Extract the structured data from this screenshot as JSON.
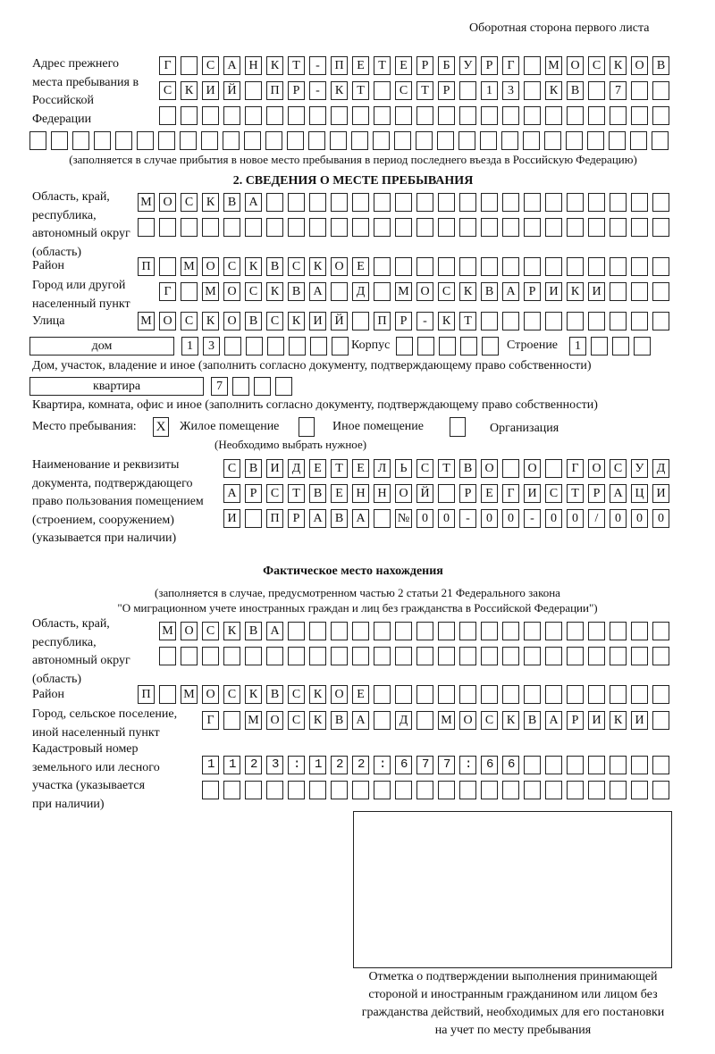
{
  "header": "Оборотная сторона первого листа",
  "prev_address": {
    "label": "Адрес прежнего места пребывания в Российской Федерации",
    "rows": [
      "Г САНКТ-ПЕТЕРБУРГ МОСКОВ",
      "СКИЙ ПР-КТ СТР 13 КВ 7",
      "",
      ""
    ],
    "note": "(заполняется в случае прибытия в новое место пребывания в период последнего въезда в Российскую Федерацию)"
  },
  "section2": {
    "title": "2. СВЕДЕНИЯ О МЕСТЕ ПРЕБЫВАНИЯ",
    "region_label": "Область, край, республика, автономный округ (область)",
    "region_rows": [
      "МОСКВА",
      ""
    ],
    "district_label": "Район",
    "district": "П МОСКВСКОЕ",
    "city_label": "Город или другой населенный пункт",
    "city": "Г МОСКВА Д МОСКВАРИКИ",
    "street_label": "Улица",
    "street": "МОСКОВСКИЙ ПР-КТ",
    "house_type": "дом",
    "house": "13",
    "korpus_label": "Корпус",
    "korpus": "",
    "building_label": "Строение",
    "building": "1",
    "house_caption": "Дом, участок, владение и иное (заполнить согласно документу, подтверждающему право собственности)",
    "flat_type": "квартира",
    "flat": "7",
    "flat_caption": "Квартира, комната, офис и иное (заполнить согласно документу, подтверждающему право собственности)",
    "stay_label": "Место пребывания:",
    "options": [
      {
        "label": "Жилое помещение",
        "mark": "X"
      },
      {
        "label": "Иное помещение",
        "mark": ""
      },
      {
        "label": "Организация",
        "mark": ""
      }
    ],
    "choose_note": "(Необходимо выбрать нужное)",
    "doc_label": "Наименование и реквизиты документа, подтверждающего право пользования помещением (строением, сооружением) (указывается при наличии)",
    "doc_rows": [
      "СВИДЕТЕЛЬСТВО О ГОСУД",
      "АРСТВЕННОЙ РЕГИСТРАЦИ",
      "И ПРАВА №00-00-00/000"
    ]
  },
  "actual": {
    "title": "Фактическое место нахождения",
    "note1": "(заполняется в случае, предусмотренном частью 2 статьи 21 Федерального закона",
    "note2": "\"О миграционном учете иностранных граждан и лиц без гражданства в Российской Федерации\")",
    "region_label": "Область, край, республика, автономный округ (область)",
    "region_rows": [
      "МОСКВА",
      ""
    ],
    "district_label": "Район",
    "district": "П МОСКВСКОЕ",
    "city_label": "Город, сельское поселение, иной населенный пункт",
    "city": "Г МОСКВА Д МОСКВАРИКИ",
    "cadastre_label": "Кадастровый номер земельного или лесного участка (указывается при наличии)",
    "cadastre_rows": [
      "1123:122:677:66",
      ""
    ]
  },
  "stamp_caption": "Отметка о подтверждении выполнения принимающей стороной и иностранным гражданином или лицом без гражданства действий, необходимых для его постановки на учет по месту пребывания"
}
